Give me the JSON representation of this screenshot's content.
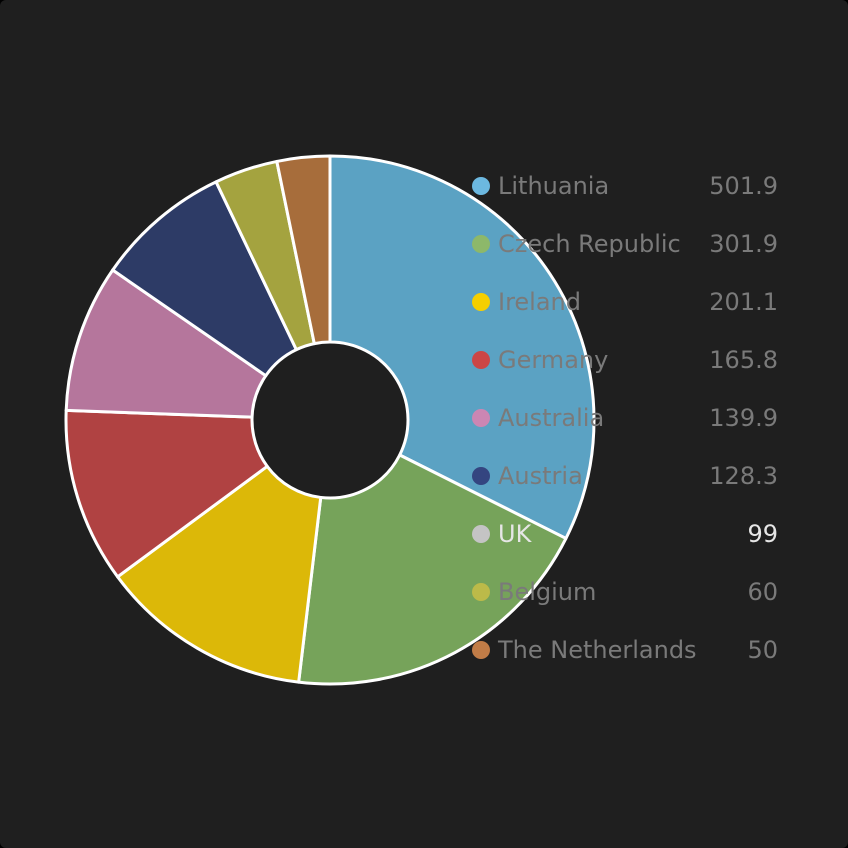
{
  "chart_data": {
    "type": "pie",
    "title": "",
    "categories": [
      "Lithuania",
      "Czech Republic",
      "Ireland",
      "Germany",
      "Australia",
      "Austria",
      "UK",
      "Belgium",
      "The Netherlands"
    ],
    "values": [
      501.9,
      301.9,
      201.1,
      165.8,
      139.9,
      128.3,
      99,
      60,
      50
    ],
    "value_labels": [
      "501.9",
      "301.9",
      "201.1",
      "165.8",
      "139.9",
      "128.3",
      "99",
      "60",
      "50"
    ],
    "colors": [
      "#5ba2c3",
      "#76a35a",
      "#dcb808",
      "#b04242",
      "#b5769c",
      "#2d3b66",
      "#bdbdbd",
      "#a4a33f",
      "#a76d3b"
    ],
    "legend_marker_colors": [
      "#6cb8e0",
      "#8db86a",
      "#f5cf00",
      "#cc4646",
      "#cc86b3",
      "#344580",
      "#c4c4c4",
      "#bcba49",
      "#c07c47"
    ],
    "legend_position": "right",
    "visible_slices": [
      "Lithuania",
      "Czech Republic",
      "Ireland",
      "Germany",
      "Australia",
      "Austria",
      "Belgium",
      "The Netherlands"
    ],
    "highlighted": "UK",
    "donut": true
  },
  "theme": {
    "background": "#1f1f1f",
    "legend_text_color": "#7a7a7a",
    "legend_highlight_color": "#e6e6e6",
    "slice_border_color": "#ffffff"
  }
}
